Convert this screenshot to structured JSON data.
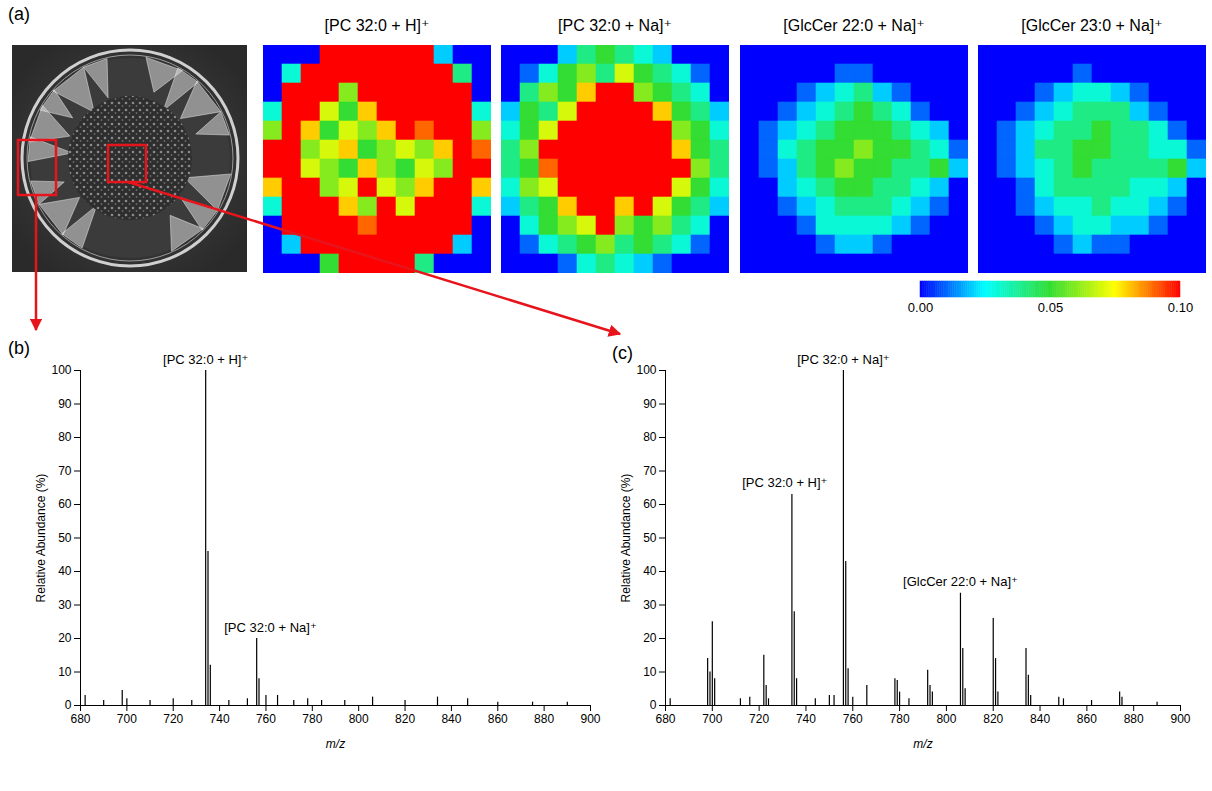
{
  "chart_data": [
    {
      "type": "heatmap",
      "panel": "(a)",
      "title": "[PC 32:0 + H]⁺",
      "color_range": [
        0,
        0.1
      ],
      "color_ticks": [
        {
          "value": 0,
          "label": "0.00"
        },
        {
          "value": 0.05,
          "label": "0.05"
        },
        {
          "value": 0.1,
          "label": "0.10"
        }
      ],
      "cells": [
        [
          0,
          0,
          0,
          0.1,
          0.1,
          0.1,
          0.1,
          0.1,
          0.1,
          0.02,
          0,
          0
        ],
        [
          0,
          0.03,
          0.1,
          0.1,
          0.1,
          0.1,
          0.1,
          0.1,
          0.1,
          0.1,
          0.04,
          0
        ],
        [
          0,
          0.1,
          0.1,
          0.1,
          0.06,
          0.1,
          0.1,
          0.1,
          0.1,
          0.1,
          0.1,
          0
        ],
        [
          0.03,
          0.1,
          0.1,
          0.07,
          0.05,
          0.08,
          0.1,
          0.1,
          0.1,
          0.1,
          0.1,
          0.03
        ],
        [
          0.06,
          0.1,
          0.08,
          0.05,
          0.07,
          0.06,
          0.08,
          0.1,
          0.09,
          0.1,
          0.1,
          0.06
        ],
        [
          0.1,
          0.1,
          0.06,
          0.07,
          0.08,
          0.05,
          0.06,
          0.07,
          0.06,
          0.08,
          0.1,
          0.09
        ],
        [
          0.1,
          0.1,
          0.07,
          0.06,
          0.05,
          0.08,
          0.06,
          0.05,
          0.07,
          0.06,
          0.1,
          0.1
        ],
        [
          0.08,
          0.1,
          0.1,
          0.06,
          0.07,
          0.1,
          0.07,
          0.06,
          0.08,
          0.1,
          0.1,
          0.08
        ],
        [
          0.03,
          0.1,
          0.1,
          0.1,
          0.08,
          0.06,
          0.1,
          0.07,
          0.1,
          0.1,
          0.1,
          0.03
        ],
        [
          0,
          0.1,
          0.1,
          0.1,
          0.1,
          0.09,
          0.1,
          0.1,
          0.1,
          0.1,
          0.1,
          0
        ],
        [
          0,
          0.02,
          0.1,
          0.1,
          0.1,
          0.1,
          0.1,
          0.1,
          0.1,
          0.1,
          0.02,
          0
        ],
        [
          0,
          0,
          0,
          0.05,
          0.1,
          0.1,
          0.1,
          0.1,
          0.04,
          0,
          0,
          0
        ]
      ]
    },
    {
      "type": "heatmap",
      "panel": "(a)",
      "title": "[PC 32:0 + Na]⁺",
      "color_range": [
        0,
        0.1
      ],
      "color_ticks": [
        {
          "value": 0,
          "label": "0.00"
        },
        {
          "value": 0.05,
          "label": "0.05"
        },
        {
          "value": 0.1,
          "label": "0.10"
        }
      ],
      "cells": [
        [
          0,
          0,
          0,
          0.02,
          0.04,
          0.05,
          0.04,
          0.03,
          0.02,
          0,
          0,
          0
        ],
        [
          0,
          0.01,
          0.03,
          0.05,
          0.06,
          0.04,
          0.07,
          0.05,
          0.04,
          0.03,
          0.01,
          0
        ],
        [
          0,
          0.04,
          0.06,
          0.05,
          0.08,
          0.1,
          0.1,
          0.06,
          0.05,
          0.04,
          0.03,
          0
        ],
        [
          0.02,
          0.05,
          0.04,
          0.07,
          0.1,
          0.1,
          0.1,
          0.1,
          0.08,
          0.05,
          0.04,
          0.02
        ],
        [
          0.03,
          0.05,
          0.07,
          0.1,
          0.1,
          0.1,
          0.1,
          0.1,
          0.1,
          0.06,
          0.05,
          0.03
        ],
        [
          0.04,
          0.06,
          0.1,
          0.1,
          0.1,
          0.1,
          0.1,
          0.1,
          0.1,
          0.08,
          0.05,
          0.04
        ],
        [
          0.04,
          0.05,
          0.09,
          0.1,
          0.1,
          0.1,
          0.1,
          0.1,
          0.1,
          0.1,
          0.06,
          0.04
        ],
        [
          0.03,
          0.06,
          0.07,
          0.1,
          0.1,
          0.1,
          0.1,
          0.1,
          0.1,
          0.07,
          0.05,
          0.03
        ],
        [
          0.02,
          0.04,
          0.05,
          0.08,
          0.1,
          0.1,
          0.08,
          0.1,
          0.07,
          0.05,
          0.04,
          0.02
        ],
        [
          0,
          0.03,
          0.05,
          0.06,
          0.07,
          0.1,
          0.06,
          0.05,
          0.06,
          0.04,
          0.03,
          0
        ],
        [
          0,
          0.01,
          0.03,
          0.04,
          0.05,
          0.06,
          0.04,
          0.05,
          0.04,
          0.03,
          0.01,
          0
        ],
        [
          0,
          0,
          0,
          0.01,
          0.03,
          0.04,
          0.03,
          0.02,
          0.01,
          0,
          0,
          0
        ]
      ]
    },
    {
      "type": "heatmap",
      "panel": "(a)",
      "title": "[GlcCer 22:0 + Na]⁺",
      "color_range": [
        0,
        0.1
      ],
      "color_ticks": [
        {
          "value": 0,
          "label": "0.00"
        },
        {
          "value": 0.05,
          "label": "0.05"
        },
        {
          "value": 0.1,
          "label": "0.10"
        }
      ],
      "cells": [
        [
          0,
          0,
          0,
          0,
          0,
          0,
          0,
          0,
          0,
          0,
          0,
          0
        ],
        [
          0,
          0,
          0,
          0,
          0,
          0.01,
          0.01,
          0,
          0,
          0,
          0,
          0
        ],
        [
          0,
          0,
          0,
          0.01,
          0.02,
          0.03,
          0.04,
          0.02,
          0.01,
          0,
          0,
          0
        ],
        [
          0,
          0,
          0.01,
          0.02,
          0.03,
          0.04,
          0.05,
          0.04,
          0.03,
          0.01,
          0,
          0
        ],
        [
          0,
          0.01,
          0.02,
          0.03,
          0.04,
          0.05,
          0.05,
          0.05,
          0.04,
          0.03,
          0.02,
          0
        ],
        [
          0,
          0.01,
          0.03,
          0.04,
          0.05,
          0.05,
          0.06,
          0.05,
          0.05,
          0.04,
          0.03,
          0.01
        ],
        [
          0,
          0.01,
          0.02,
          0.04,
          0.05,
          0.06,
          0.05,
          0.05,
          0.04,
          0.04,
          0.05,
          0.02
        ],
        [
          0,
          0,
          0.02,
          0.03,
          0.04,
          0.05,
          0.05,
          0.04,
          0.04,
          0.03,
          0.02,
          0
        ],
        [
          0,
          0,
          0.01,
          0.02,
          0.03,
          0.04,
          0.04,
          0.04,
          0.03,
          0.02,
          0.01,
          0
        ],
        [
          0,
          0,
          0,
          0.01,
          0.03,
          0.03,
          0.03,
          0.03,
          0.02,
          0.01,
          0,
          0
        ],
        [
          0,
          0,
          0,
          0,
          0.01,
          0.02,
          0.02,
          0.01,
          0,
          0,
          0,
          0
        ],
        [
          0,
          0,
          0,
          0,
          0,
          0,
          0,
          0,
          0,
          0,
          0,
          0
        ]
      ]
    },
    {
      "type": "heatmap",
      "panel": "(a)",
      "title": "[GlcCer 23:0 + Na]⁺",
      "color_range": [
        0,
        0.1
      ],
      "color_ticks": [
        {
          "value": 0,
          "label": "0.00"
        },
        {
          "value": 0.05,
          "label": "0.05"
        },
        {
          "value": 0.1,
          "label": "0.10"
        }
      ],
      "cells": [
        [
          0,
          0,
          0,
          0,
          0,
          0,
          0,
          0,
          0,
          0,
          0,
          0
        ],
        [
          0,
          0,
          0,
          0,
          0,
          0.01,
          0,
          0,
          0,
          0,
          0,
          0
        ],
        [
          0,
          0,
          0,
          0.01,
          0.02,
          0.03,
          0.03,
          0.02,
          0.01,
          0,
          0,
          0
        ],
        [
          0,
          0,
          0.01,
          0.02,
          0.03,
          0.04,
          0.04,
          0.04,
          0.02,
          0.01,
          0,
          0
        ],
        [
          0,
          0.01,
          0.02,
          0.03,
          0.04,
          0.04,
          0.05,
          0.04,
          0.04,
          0.03,
          0.01,
          0
        ],
        [
          0,
          0.01,
          0.02,
          0.04,
          0.04,
          0.05,
          0.05,
          0.04,
          0.04,
          0.03,
          0.03,
          0.01
        ],
        [
          0,
          0.01,
          0.02,
          0.03,
          0.04,
          0.05,
          0.04,
          0.04,
          0.04,
          0.04,
          0.05,
          0.02
        ],
        [
          0,
          0,
          0.01,
          0.03,
          0.04,
          0.04,
          0.04,
          0.04,
          0.03,
          0.03,
          0.02,
          0
        ],
        [
          0,
          0,
          0.01,
          0.02,
          0.03,
          0.03,
          0.04,
          0.03,
          0.03,
          0.02,
          0.01,
          0
        ],
        [
          0,
          0,
          0,
          0.01,
          0.02,
          0.03,
          0.03,
          0.02,
          0.02,
          0.01,
          0,
          0
        ],
        [
          0,
          0,
          0,
          0,
          0.01,
          0.02,
          0.01,
          0.01,
          0,
          0,
          0,
          0
        ],
        [
          0,
          0,
          0,
          0,
          0,
          0,
          0,
          0,
          0,
          0,
          0,
          0
        ]
      ]
    },
    {
      "type": "spectrum",
      "panel": "(b)",
      "color": "#000000",
      "x_label": "m/z",
      "y_label": "Relative Abundance (%)",
      "xlim": [
        680,
        900
      ],
      "xticks": [
        680,
        700,
        720,
        740,
        760,
        780,
        800,
        820,
        840,
        860,
        880,
        900
      ],
      "ylim": [
        0,
        100
      ],
      "yticks": [
        0,
        10,
        20,
        30,
        40,
        50,
        60,
        70,
        80,
        90,
        100
      ],
      "x": [
        682,
        690,
        698,
        700,
        710,
        720,
        728,
        734,
        735,
        736,
        744,
        752,
        756,
        757,
        760,
        765,
        772,
        778,
        784,
        794,
        806,
        820,
        834,
        847,
        860,
        875,
        890
      ],
      "values": [
        3,
        1.5,
        4.5,
        2,
        1.5,
        2,
        1.5,
        100,
        46,
        12,
        1.5,
        2,
        20,
        8,
        3,
        3,
        1.5,
        2,
        1.5,
        1.5,
        2.5,
        1.5,
        2.5,
        2,
        1,
        1,
        1
      ],
      "annotations": [
        {
          "text": "[PC 32:0 + H]⁺",
          "x": 734
        },
        {
          "text": "[PC 32:0 + Na]⁺",
          "x": 756
        }
      ]
    },
    {
      "type": "spectrum",
      "panel": "(c)",
      "color": "#000000",
      "x_label": "m/z",
      "y_label": "Relative Abundance (%)",
      "xlim": [
        680,
        900
      ],
      "xticks": [
        680,
        700,
        720,
        740,
        760,
        780,
        800,
        820,
        840,
        860,
        880,
        900
      ],
      "ylim": [
        0,
        100
      ],
      "yticks": [
        0,
        10,
        20,
        30,
        40,
        50,
        60,
        70,
        80,
        90,
        100
      ],
      "x": [
        682,
        698,
        699,
        700,
        701,
        712,
        716,
        722,
        723,
        724,
        734,
        735,
        736,
        744,
        750,
        752,
        756,
        757,
        758,
        760,
        766,
        778,
        779,
        780,
        784,
        792,
        793,
        794,
        806,
        807,
        808,
        820,
        821,
        822,
        834,
        835,
        836,
        848,
        850,
        862,
        874,
        875,
        890
      ],
      "values": [
        2,
        14,
        10,
        25,
        8,
        2,
        2.5,
        15,
        6,
        2,
        63,
        28,
        8,
        2,
        3,
        3,
        100,
        43,
        11,
        2.5,
        6,
        8,
        7.5,
        4,
        2,
        10.5,
        6,
        4,
        33.5,
        17,
        5,
        26,
        14,
        4,
        17,
        9,
        3,
        2.5,
        2,
        1.5,
        4,
        2.5,
        1
      ],
      "annotations": [
        {
          "text": "[PC 32:0 + Na]⁺",
          "x": 756
        },
        {
          "text": "[PC 32:0 + H]⁺",
          "x": 734
        },
        {
          "text": "[GlcCer 22:0 + Na]⁺",
          "x": 806
        }
      ]
    }
  ]
}
